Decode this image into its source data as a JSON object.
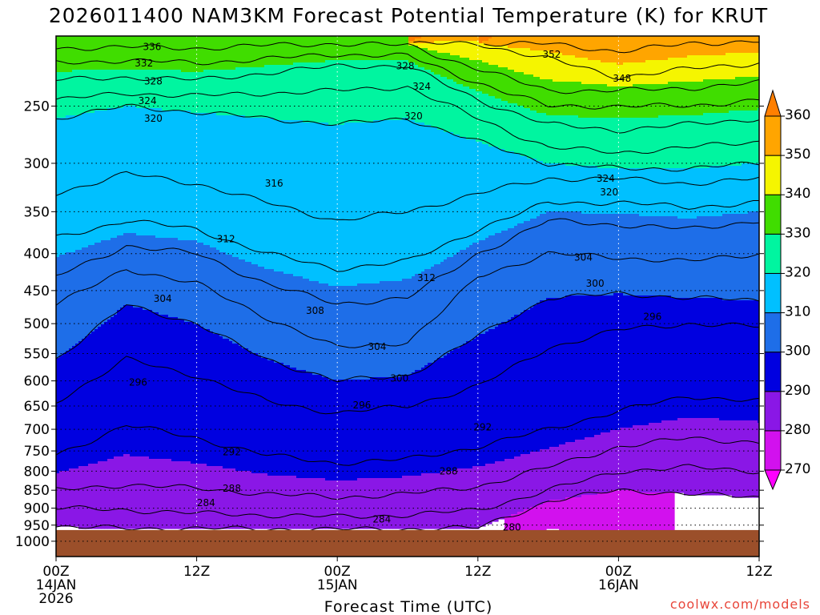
{
  "chart_data": {
    "type": "contour-fill",
    "title": "2026011400 NAM3KM Forecast Potential Temperature (K) for KRUT",
    "xlabel": "Forecast Time (UTC)",
    "ylabel": "",
    "x_ticks": [
      {
        "hour": 0,
        "line1": "00Z",
        "line2": "14JAN",
        "line3": "2026"
      },
      {
        "hour": 12,
        "line1": "12Z",
        "line2": "",
        "line3": ""
      },
      {
        "hour": 24,
        "line1": "00Z",
        "line2": "15JAN",
        "line3": ""
      },
      {
        "hour": 36,
        "line1": "12Z",
        "line2": "",
        "line3": ""
      },
      {
        "hour": 48,
        "line1": "00Z",
        "line2": "16JAN",
        "line3": ""
      },
      {
        "hour": 60,
        "line1": "12Z",
        "line2": "",
        "line3": ""
      }
    ],
    "xlim": [
      0,
      60
    ],
    "y_ticks": [
      "250",
      "300",
      "350",
      "400",
      "450",
      "500",
      "550",
      "600",
      "650",
      "700",
      "750",
      "800",
      "850",
      "900",
      "950",
      "1000"
    ],
    "y_tick_values": [
      250,
      300,
      350,
      400,
      450,
      500,
      550,
      600,
      650,
      700,
      750,
      800,
      850,
      900,
      950,
      1000
    ],
    "ylim_hpa": [
      200,
      1050
    ],
    "surface_pressure_hpa": 965,
    "colorbar": {
      "levels": [
        270,
        280,
        290,
        300,
        310,
        320,
        330,
        340,
        350,
        360
      ],
      "labels": [
        "270",
        "280",
        "290",
        "300",
        "310",
        "320",
        "330",
        "340",
        "350",
        "360"
      ],
      "colors": [
        "#ff00ff",
        "#d211ee",
        "#8a17e6",
        "#0000e0",
        "#1e6ee8",
        "#00c0ff",
        "#00f5a0",
        "#40dd00",
        "#f5f500",
        "#ffa500",
        "#ff7f00"
      ]
    },
    "theta_profile": {
      "comment": "Representative isentrope heights (hPa) at forecast hours 0..60 every 6h",
      "hours": [
        0,
        6,
        12,
        18,
        24,
        30,
        36,
        42,
        48,
        54,
        60
      ],
      "isentropes": [
        {
          "theta": 280,
          "p": [
            955,
            960,
            960,
            962,
            963,
            962,
            958,
            880,
            850,
            860,
            870
          ]
        },
        {
          "theta": 284,
          "p": [
            900,
            905,
            915,
            920,
            925,
            920,
            905,
            850,
            800,
            790,
            800
          ]
        },
        {
          "theta": 288,
          "p": [
            850,
            835,
            845,
            860,
            870,
            860,
            840,
            790,
            740,
            720,
            730
          ]
        },
        {
          "theta": 292,
          "p": [
            760,
            690,
            720,
            760,
            780,
            770,
            740,
            700,
            660,
            630,
            640
          ]
        },
        {
          "theta": 296,
          "p": [
            640,
            560,
            590,
            640,
            665,
            650,
            610,
            540,
            510,
            500,
            505
          ]
        },
        {
          "theta": 300,
          "p": [
            560,
            470,
            500,
            560,
            600,
            590,
            520,
            460,
            455,
            460,
            465
          ]
        },
        {
          "theta": 304,
          "p": [
            470,
            420,
            440,
            490,
            540,
            530,
            430,
            400,
            405,
            410,
            400
          ]
        },
        {
          "theta": 308,
          "p": [
            430,
            390,
            400,
            440,
            470,
            460,
            400,
            360,
            365,
            370,
            360
          ]
        },
        {
          "theta": 312,
          "p": [
            380,
            360,
            370,
            400,
            420,
            410,
            370,
            340,
            340,
            345,
            340
          ]
        },
        {
          "theta": 316,
          "p": [
            330,
            310,
            320,
            340,
            360,
            350,
            330,
            315,
            315,
            320,
            315
          ]
        },
        {
          "theta": 320,
          "p": [
            260,
            250,
            255,
            260,
            265,
            260,
            280,
            300,
            305,
            305,
            300
          ]
        },
        {
          "theta": 324,
          "p": [
            245,
            240,
            242,
            240,
            238,
            235,
            260,
            285,
            290,
            285,
            280
          ]
        },
        {
          "theta": 328,
          "p": [
            230,
            228,
            230,
            225,
            220,
            220,
            245,
            265,
            270,
            265,
            260
          ]
        },
        {
          "theta": 332,
          "p": [
            218,
            216,
            218,
            215,
            212,
            213,
            232,
            250,
            250,
            250,
            245
          ]
        },
        {
          "theta": 336,
          "p": [
            208,
            207,
            208,
            206,
            205,
            206,
            222,
            238,
            238,
            236,
            232
          ]
        },
        {
          "theta": 348,
          "p": [
            null,
            null,
            null,
            null,
            null,
            null,
            205,
            215,
            228,
            222,
            218
          ]
        },
        {
          "theta": 352,
          "p": [
            null,
            null,
            null,
            null,
            null,
            null,
            null,
            205,
            210,
            205,
            203
          ]
        }
      ]
    },
    "contour_labels": [
      {
        "text": "336",
        "hour": 8.2,
        "p": 207
      },
      {
        "text": "332",
        "hour": 7.5,
        "p": 218
      },
      {
        "text": "328",
        "hour": 8.3,
        "p": 231
      },
      {
        "text": "324",
        "hour": 7.8,
        "p": 246
      },
      {
        "text": "320",
        "hour": 8.3,
        "p": 260
      },
      {
        "text": "328",
        "hour": 29.8,
        "p": 220
      },
      {
        "text": "324",
        "hour": 31.2,
        "p": 235
      },
      {
        "text": "320",
        "hour": 30.5,
        "p": 258
      },
      {
        "text": "352",
        "hour": 42.3,
        "p": 212
      },
      {
        "text": "348",
        "hour": 48.3,
        "p": 229
      },
      {
        "text": "316",
        "hour": 18.6,
        "p": 320
      },
      {
        "text": "312",
        "hour": 14.5,
        "p": 382
      },
      {
        "text": "324",
        "hour": 46.9,
        "p": 315
      },
      {
        "text": "320",
        "hour": 47.2,
        "p": 329
      },
      {
        "text": "304",
        "hour": 45.0,
        "p": 405
      },
      {
        "text": "300",
        "hour": 46.0,
        "p": 440
      },
      {
        "text": "312",
        "hour": 31.6,
        "p": 432
      },
      {
        "text": "308",
        "hour": 22.1,
        "p": 480
      },
      {
        "text": "304",
        "hour": 9.1,
        "p": 462
      },
      {
        "text": "296",
        "hour": 50.9,
        "p": 489
      },
      {
        "text": "304",
        "hour": 27.4,
        "p": 538
      },
      {
        "text": "300",
        "hour": 29.3,
        "p": 595
      },
      {
        "text": "296",
        "hour": 7.0,
        "p": 603
      },
      {
        "text": "296",
        "hour": 26.1,
        "p": 648
      },
      {
        "text": "292",
        "hour": 36.4,
        "p": 695
      },
      {
        "text": "292",
        "hour": 15.0,
        "p": 753
      },
      {
        "text": "288",
        "hour": 33.5,
        "p": 800
      },
      {
        "text": "288",
        "hour": 15.0,
        "p": 845
      },
      {
        "text": "284",
        "hour": 12.8,
        "p": 885
      },
      {
        "text": "284",
        "hour": 27.8,
        "p": 932
      },
      {
        "text": "280",
        "hour": 38.9,
        "p": 957
      }
    ]
  },
  "credit": "coolwx.com/models"
}
